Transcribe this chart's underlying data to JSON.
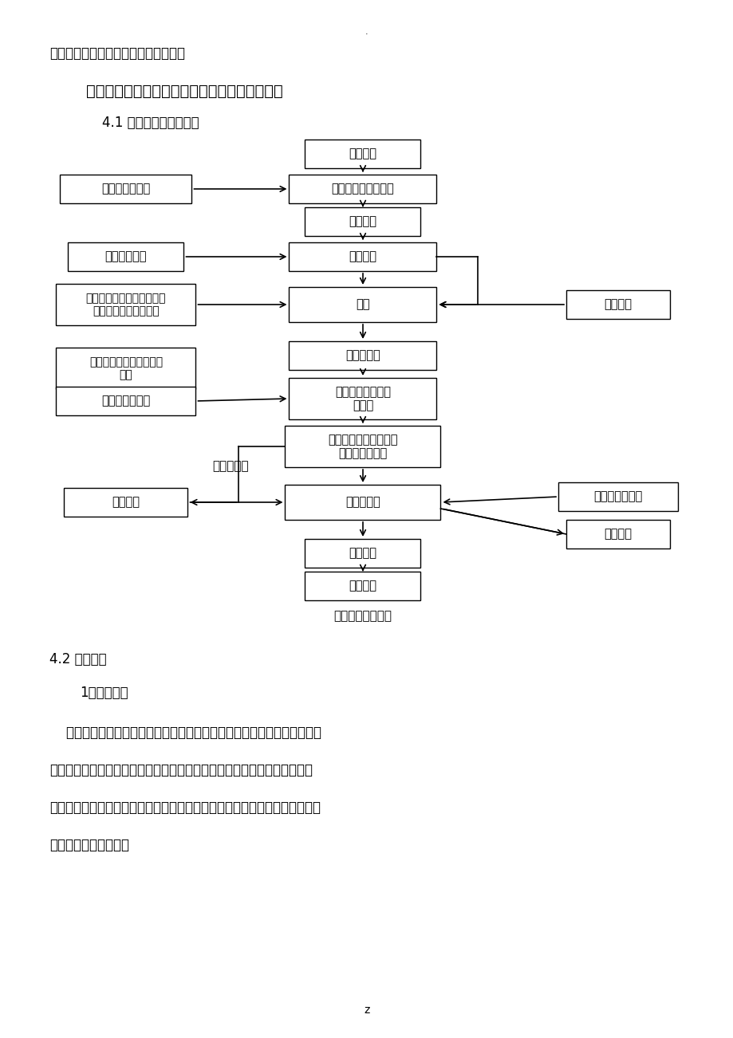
{
  "bg_color": "#ffffff",
  "page_width": 9.2,
  "page_height": 13.02,
  "top_text": "序的测量工作均应按相应的程序进展。",
  "section_title": "四、反循环钻孔灌注桩施工工艺流程和施工方法",
  "subsection_title": "4.1 施工流程图见下列图",
  "flowchart_caption": "灌注桩施工流程图",
  "section42": "4.2 施工方法",
  "subsection421": "1）施工准备",
  "para_line1": "    施工前应平整场地，去除杂物，换除表层软土，保证钻机底座填土密实，",
  "para_line2": "以免产生不均匀沉降；在施工范围内不阻碍桩基施工的场地挖好泥浆池和沉",
  "para_line3": "淀池，用钢管围护并安装平安网，设警示标志，同时做好施工现场排水工作，",
  "para_line4": "确保施工场地不积水。",
  "bottom_mark": "z",
  "top_dot": "·",
  "boxes_center": [
    "施工准备",
    "埋设护筒、钻机就位",
    "黏土造浆",
    "钻进成孔",
    "清孔",
    "吊装钢筋笼",
    "拼装导管和混凝土\n土料斗",
    "检查孔内泥浆性能指标\n和孔底沉淀厚度",
    "灌注混凝土",
    "撤除导管",
    "钻机就位"
  ],
  "boxes_left": [
    "测量、复核桩位",
    "做好钻孔记录",
    "检测孔深、孔径、垂直度、\n沉渣厚度、泥浆等指标",
    "钢筋笼加工制作、检查、\n运输",
    "检查导管等设备",
    "二次清孔"
  ],
  "boxes_right": [
    "监理报检",
    "罐车运输混凝土",
    "试件制作"
  ],
  "label_buhe": "不符合要求"
}
